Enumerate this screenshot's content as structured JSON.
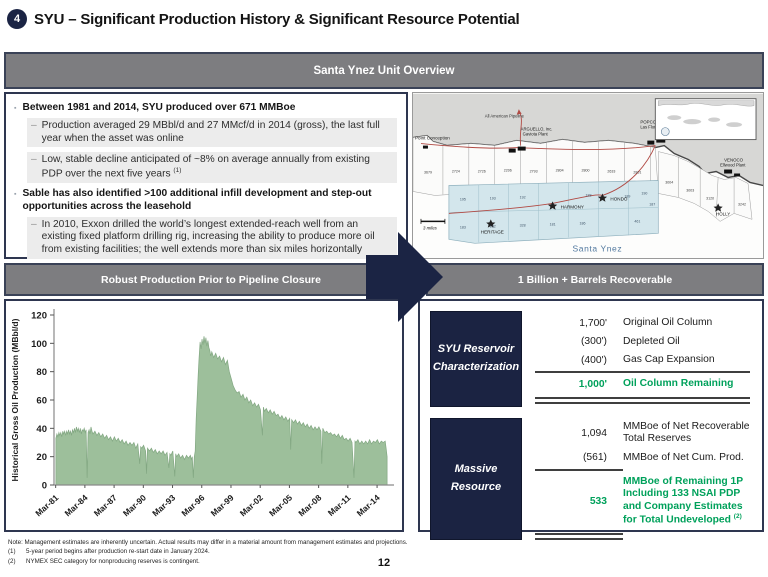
{
  "header": {
    "badge": "4",
    "title": "SYU – Significant Production History & Significant Resource Potential"
  },
  "overview": {
    "title": "Santa Ynez Unit Overview",
    "bullets": [
      {
        "text": "Between 1981 and 2014, SYU produced over 671 MMBoe",
        "subs": [
          {
            "text": "Production averaged 29 MBbl/d and 27 MMcf/d in 2014 (gross), the last full year when the asset was online",
            "sup": ""
          },
          {
            "text": "Low, stable decline anticipated of ~8% on average annually from existing PDP over the next five years ",
            "sup": "(1)"
          }
        ]
      },
      {
        "text": "Sable has also identified >100 additional infill development and step-out opportunities across the leasehold",
        "subs": [
          {
            "text": "In 2010, Exxon drilled the world’s longest extended-reach well from an existing fixed platform drilling rig, increasing the ability to produce more oil from existing facilities; the well extends more than six miles horizontally",
            "sup": ""
          }
        ]
      }
    ]
  },
  "map": {
    "region_label": "Santa Ynez",
    "scale_label": "3 miles",
    "labels": {
      "point_conception": "Point Conception",
      "pipeline": "All American Pipeline",
      "arguello1": "ARGUELLO, Inc.",
      "arguello2": "Gaviota Plant",
      "popco": "POPCO   EXXONMOBIL",
      "las_flores": "Las Flores Canyon Plant",
      "venoco1": "VENOCO",
      "venoco2": "Ellwood Plant"
    },
    "platforms": [
      "HONDO",
      "HARMONY",
      "HERITAGE",
      "HOLLY"
    ],
    "white_blocks": [
      "3679",
      "2724",
      "2726",
      "2206",
      "2793",
      "2804",
      "2800",
      "2633",
      "2801",
      "3004",
      "3003",
      "3120",
      "3242"
    ],
    "unit_blocks": [
      "195",
      "193",
      "192",
      "188",
      "190",
      "189",
      "187",
      "183",
      "182",
      "328",
      "181",
      "186",
      "461"
    ]
  },
  "sections": {
    "left": "Robust Production Prior to Pipeline Closure",
    "right": "1 Billion + Barrels Recoverable"
  },
  "chart_data": {
    "type": "area",
    "title": "",
    "xlabel": "",
    "ylabel": "Historical Gross Oil Production (MBbl/d)",
    "ylim": [
      0,
      120
    ],
    "yticks": [
      0,
      20,
      40,
      60,
      80,
      100,
      120
    ],
    "xlim": [
      1981.0,
      2015.6
    ],
    "xticks": [
      {
        "x": 1981.17,
        "label": "Mar-81"
      },
      {
        "x": 1984.17,
        "label": "Mar-84"
      },
      {
        "x": 1987.17,
        "label": "Mar-87"
      },
      {
        "x": 1990.17,
        "label": "Mar-90"
      },
      {
        "x": 1993.17,
        "label": "Mar-93"
      },
      {
        "x": 1996.17,
        "label": "Mar-96"
      },
      {
        "x": 1999.17,
        "label": "Mar-99"
      },
      {
        "x": 2002.17,
        "label": "Mar-02"
      },
      {
        "x": 2005.17,
        "label": "Mar-05"
      },
      {
        "x": 2008.17,
        "label": "Mar-08"
      },
      {
        "x": 2011.17,
        "label": "Mar-11"
      },
      {
        "x": 2014.17,
        "label": "Mar-14"
      }
    ],
    "legend": [],
    "grid": false,
    "fill": "#9dbf9b",
    "stroke": "#82a782",
    "points": [
      [
        1981.2,
        33
      ],
      [
        1981.3,
        36
      ],
      [
        1981.4,
        34
      ],
      [
        1981.5,
        37
      ],
      [
        1981.6,
        35
      ],
      [
        1981.7,
        37
      ],
      [
        1981.8,
        34
      ],
      [
        1981.9,
        38
      ],
      [
        1982.0,
        36
      ],
      [
        1982.1,
        38
      ],
      [
        1982.2,
        35
      ],
      [
        1982.3,
        38
      ],
      [
        1982.4,
        36
      ],
      [
        1982.5,
        39
      ],
      [
        1982.6,
        36
      ],
      [
        1982.7,
        38
      ],
      [
        1982.8,
        35
      ],
      [
        1982.9,
        39
      ],
      [
        1983.0,
        37
      ],
      [
        1983.1,
        40
      ],
      [
        1983.2,
        37
      ],
      [
        1983.3,
        41
      ],
      [
        1983.4,
        38
      ],
      [
        1983.5,
        40
      ],
      [
        1983.6,
        37
      ],
      [
        1983.7,
        40
      ],
      [
        1983.8,
        36
      ],
      [
        1983.9,
        39
      ],
      [
        1984.0,
        38
      ],
      [
        1984.1,
        40
      ],
      [
        1984.2,
        37
      ],
      [
        1984.3,
        39
      ],
      [
        1984.4,
        5
      ],
      [
        1984.5,
        37
      ],
      [
        1984.6,
        39
      ],
      [
        1984.7,
        36
      ],
      [
        1984.8,
        41
      ],
      [
        1984.9,
        38
      ],
      [
        1985.0,
        36
      ],
      [
        1985.2,
        38
      ],
      [
        1985.4,
        35
      ],
      [
        1985.6,
        37
      ],
      [
        1985.8,
        34
      ],
      [
        1986.0,
        36
      ],
      [
        1986.2,
        33
      ],
      [
        1986.4,
        35
      ],
      [
        1986.6,
        32
      ],
      [
        1986.8,
        34
      ],
      [
        1987.0,
        31
      ],
      [
        1987.2,
        34
      ],
      [
        1987.4,
        31
      ],
      [
        1987.6,
        33
      ],
      [
        1987.8,
        30
      ],
      [
        1988.0,
        32
      ],
      [
        1988.2,
        29
      ],
      [
        1988.4,
        31
      ],
      [
        1988.6,
        28
      ],
      [
        1988.8,
        30
      ],
      [
        1989.0,
        28
      ],
      [
        1989.2,
        30
      ],
      [
        1989.4,
        26
      ],
      [
        1989.6,
        29
      ],
      [
        1989.8,
        15
      ],
      [
        1989.9,
        27
      ],
      [
        1990.0,
        26
      ],
      [
        1990.2,
        28
      ],
      [
        1990.4,
        24
      ],
      [
        1990.5,
        8
      ],
      [
        1990.6,
        26
      ],
      [
        1990.8,
        24
      ],
      [
        1991.0,
        26
      ],
      [
        1991.2,
        23
      ],
      [
        1991.4,
        25
      ],
      [
        1991.6,
        22
      ],
      [
        1991.8,
        24
      ],
      [
        1992.0,
        22
      ],
      [
        1992.2,
        24
      ],
      [
        1992.4,
        21
      ],
      [
        1992.6,
        23
      ],
      [
        1992.8,
        12
      ],
      [
        1992.9,
        22
      ],
      [
        1993.0,
        21
      ],
      [
        1993.2,
        24
      ],
      [
        1993.4,
        6
      ],
      [
        1993.5,
        22
      ],
      [
        1993.6,
        20
      ],
      [
        1993.8,
        22
      ],
      [
        1994.0,
        19
      ],
      [
        1994.2,
        21
      ],
      [
        1994.4,
        18
      ],
      [
        1994.6,
        21
      ],
      [
        1994.8,
        19
      ],
      [
        1995.0,
        21
      ],
      [
        1995.1,
        18
      ],
      [
        1995.2,
        20
      ],
      [
        1995.3,
        5
      ],
      [
        1995.4,
        20
      ],
      [
        1995.5,
        24
      ],
      [
        1995.6,
        47
      ],
      [
        1995.7,
        62
      ],
      [
        1995.8,
        78
      ],
      [
        1995.9,
        90
      ],
      [
        1996.0,
        101
      ],
      [
        1996.1,
        96
      ],
      [
        1996.2,
        103
      ],
      [
        1996.3,
        99
      ],
      [
        1996.4,
        105
      ],
      [
        1996.5,
        100
      ],
      [
        1996.6,
        104
      ],
      [
        1996.7,
        98
      ],
      [
        1996.8,
        102
      ],
      [
        1996.9,
        97
      ],
      [
        1997.0,
        95
      ],
      [
        1997.1,
        91
      ],
      [
        1997.2,
        94
      ],
      [
        1997.4,
        90
      ],
      [
        1997.6,
        93
      ],
      [
        1997.8,
        89
      ],
      [
        1998.0,
        91
      ],
      [
        1998.2,
        87
      ],
      [
        1998.4,
        90
      ],
      [
        1998.6,
        85
      ],
      [
        1998.8,
        88
      ],
      [
        1999.0,
        80
      ],
      [
        1999.2,
        75
      ],
      [
        1999.4,
        70
      ],
      [
        1999.6,
        67
      ],
      [
        1999.8,
        65
      ],
      [
        2000.0,
        66
      ],
      [
        2000.2,
        62
      ],
      [
        2000.4,
        64
      ],
      [
        2000.6,
        60
      ],
      [
        2000.8,
        62
      ],
      [
        2001.0,
        58
      ],
      [
        2001.2,
        60
      ],
      [
        2001.4,
        56
      ],
      [
        2001.6,
        58
      ],
      [
        2001.8,
        55
      ],
      [
        2002.0,
        57
      ],
      [
        2002.2,
        53
      ],
      [
        2002.4,
        35
      ],
      [
        2002.5,
        55
      ],
      [
        2002.6,
        52
      ],
      [
        2002.8,
        54
      ],
      [
        2003.0,
        51
      ],
      [
        2003.2,
        53
      ],
      [
        2003.4,
        50
      ],
      [
        2003.6,
        52
      ],
      [
        2003.8,
        49
      ],
      [
        2004.0,
        50
      ],
      [
        2004.2,
        47
      ],
      [
        2004.4,
        49
      ],
      [
        2004.6,
        46
      ],
      [
        2004.8,
        48
      ],
      [
        2005.0,
        45
      ],
      [
        2005.2,
        47
      ],
      [
        2005.3,
        25
      ],
      [
        2005.4,
        46
      ],
      [
        2005.6,
        44
      ],
      [
        2005.8,
        46
      ],
      [
        2006.0,
        43
      ],
      [
        2006.2,
        45
      ],
      [
        2006.4,
        42
      ],
      [
        2006.6,
        44
      ],
      [
        2006.8,
        41
      ],
      [
        2007.0,
        43
      ],
      [
        2007.2,
        40
      ],
      [
        2007.4,
        42
      ],
      [
        2007.6,
        39
      ],
      [
        2007.8,
        41
      ],
      [
        2008.0,
        39
      ],
      [
        2008.2,
        41
      ],
      [
        2008.4,
        38
      ],
      [
        2008.5,
        15
      ],
      [
        2008.6,
        40
      ],
      [
        2008.8,
        37
      ],
      [
        2009.0,
        38
      ],
      [
        2009.2,
        36
      ],
      [
        2009.4,
        37
      ],
      [
        2009.6,
        35
      ],
      [
        2009.8,
        36
      ],
      [
        2010.0,
        34
      ],
      [
        2010.2,
        36
      ],
      [
        2010.4,
        33
      ],
      [
        2010.6,
        35
      ],
      [
        2010.8,
        32
      ],
      [
        2011.0,
        33
      ],
      [
        2011.2,
        31
      ],
      [
        2011.4,
        33
      ],
      [
        2011.6,
        30
      ],
      [
        2011.8,
        5
      ],
      [
        2011.9,
        31
      ],
      [
        2012.0,
        30
      ],
      [
        2012.2,
        32
      ],
      [
        2012.4,
        29
      ],
      [
        2012.6,
        31
      ],
      [
        2012.8,
        29
      ],
      [
        2013.0,
        31
      ],
      [
        2013.2,
        29
      ],
      [
        2013.4,
        32
      ],
      [
        2013.6,
        29
      ],
      [
        2013.8,
        31
      ],
      [
        2014.0,
        30
      ],
      [
        2014.2,
        32
      ],
      [
        2014.4,
        29
      ],
      [
        2014.6,
        31
      ],
      [
        2014.8,
        30
      ],
      [
        2015.0,
        31
      ],
      [
        2015.1,
        26
      ],
      [
        2015.2,
        20
      ]
    ]
  },
  "resource_table": {
    "groups": [
      {
        "box": "SYU Reservoir Characterization",
        "rows": [
          {
            "value": "1,700'",
            "label": "Original Oil Column"
          },
          {
            "value": "(300')",
            "label": "Depleted Oil"
          },
          {
            "value": "(400')",
            "label": "Gas Cap Expansion"
          },
          {
            "value": "1,000'",
            "label": "Oil Column Remaining"
          }
        ]
      },
      {
        "box": "Massive Resource",
        "rows": [
          {
            "value": "1,094",
            "label": "MMBoe of Net Recoverable Total Reserves"
          },
          {
            "value": "(561)",
            "label": "MMBoe of Net Cum. Prod."
          },
          {
            "value": "533",
            "label": "MMBoe of Remaining 1P Including 133 NSAI PDP and Company Estimates for Total Undeveloped ",
            "sup": "(2)"
          }
        ]
      }
    ]
  },
  "footnotes": {
    "note": "Note: Management estimates are inherently uncertain. Actual results may differ in a material amount from management estimates and projections.",
    "items": [
      {
        "num": "(1)",
        "text": "5-year period begins after production re-start date in January 2024."
      },
      {
        "num": "(2)",
        "text": "NYMEX SEC category for nonproducing reserves is contingent."
      }
    ]
  },
  "page": {
    "number": "12"
  }
}
